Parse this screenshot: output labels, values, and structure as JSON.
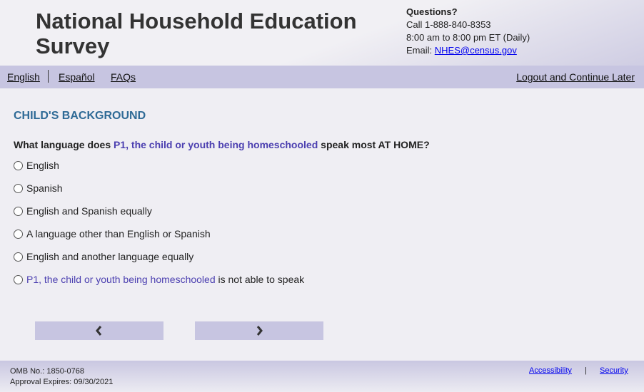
{
  "header": {
    "title": "National Household Education Survey",
    "questions_label": "Questions?",
    "phone": "Call 1-888-840-8353",
    "hours": "8:00 am to 8:00 pm ET (Daily)",
    "email_label": "Email:",
    "email": "NHES@census.gov"
  },
  "nav": {
    "english": "English",
    "espanol": "Español",
    "faqs": "FAQs",
    "logout": "Logout and Continue Later"
  },
  "main": {
    "section": "CHILD'S BACKGROUND",
    "question": {
      "pre": "What language does ",
      "highlight": "P1, the child or youth being homeschooled",
      "post": " speak most AT HOME?"
    },
    "options": [
      "English",
      "Spanish",
      "English and Spanish equally",
      "A language other than English or Spanish",
      "English and another language equally"
    ],
    "last_option": {
      "highlight": "P1, the child or youth being homeschooled",
      "post": " is not able to speak"
    },
    "prev_icon": "chevron-left",
    "next_icon": "chevron-right",
    "prev_label": "‹",
    "next_label": "›"
  },
  "footer": {
    "omb": "OMB No.: 1850-0768",
    "expires": "Approval Expires: 09/30/2021",
    "accessibility": "Accessibility",
    "divider": "|",
    "security": "Security"
  },
  "colors": {
    "nav_bg": "#c7c5e1",
    "section": "#2e6a96",
    "highlight": "#4b3fb0"
  }
}
